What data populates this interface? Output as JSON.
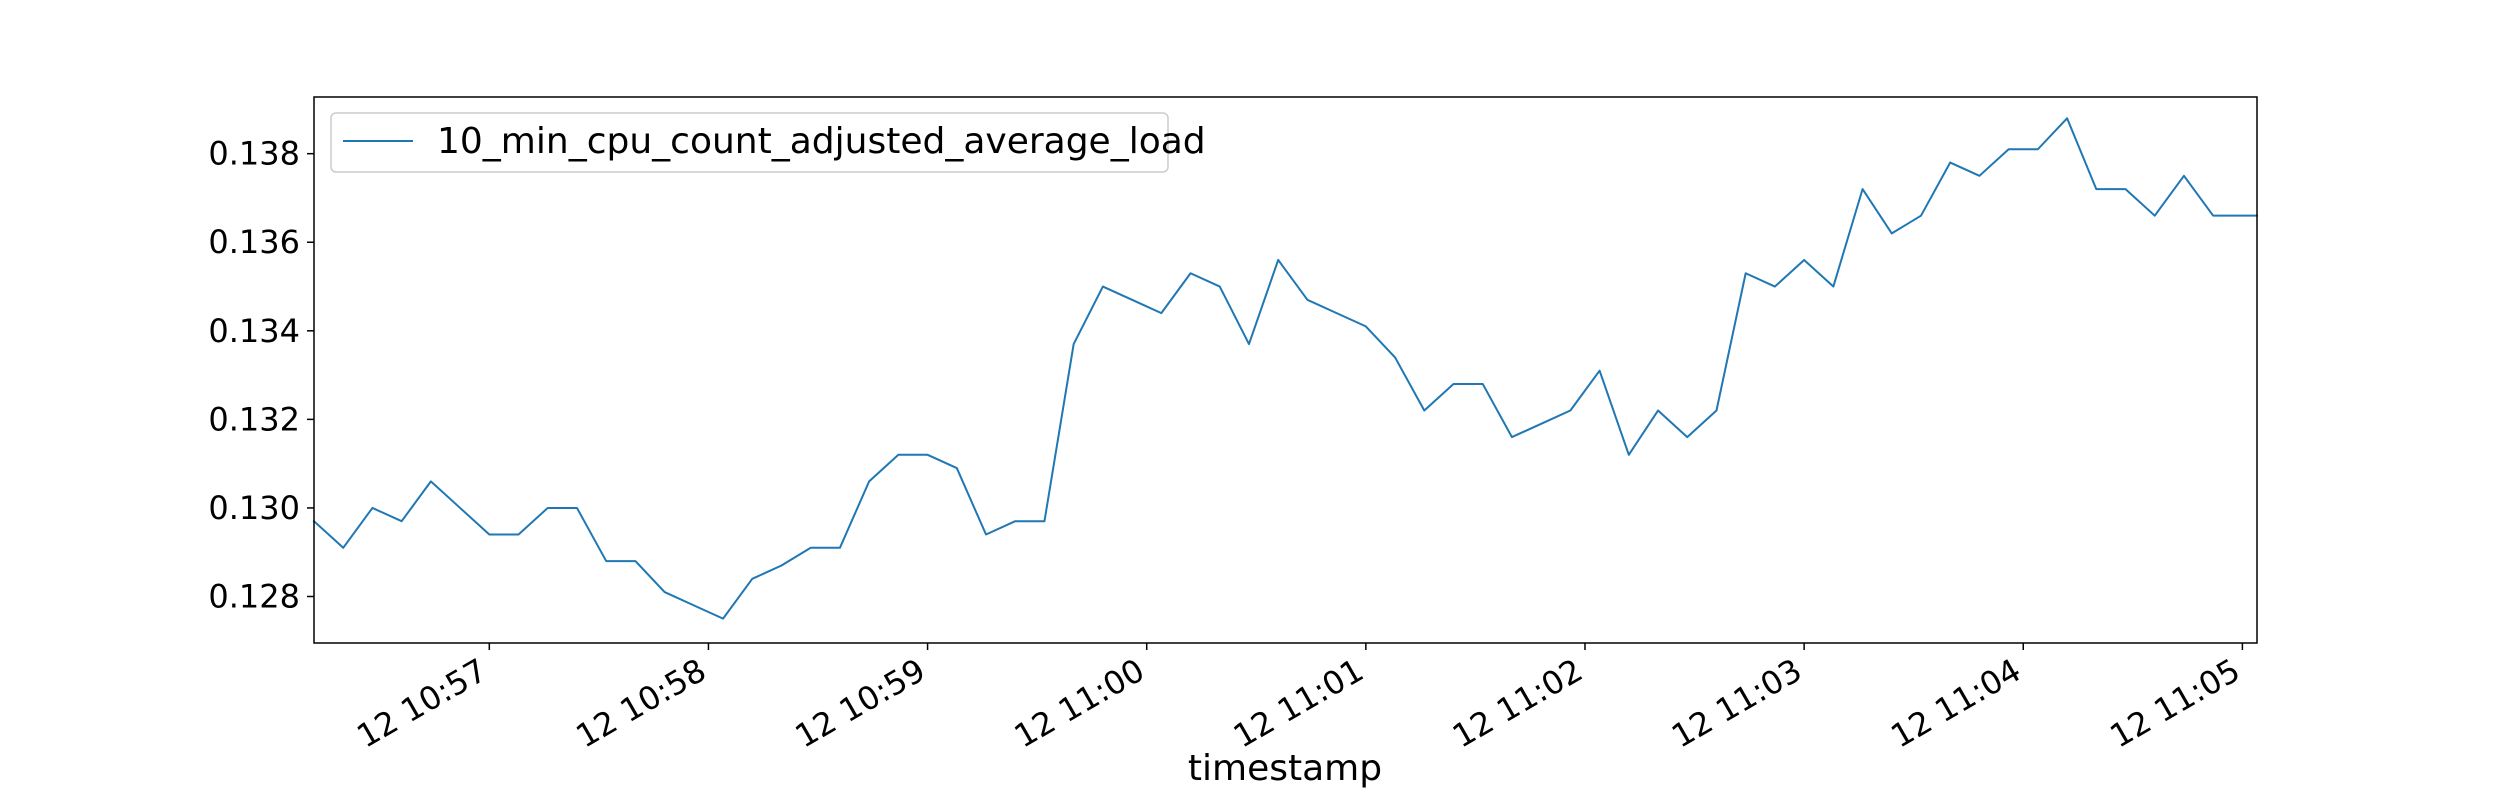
{
  "chart_data": {
    "type": "line",
    "title": "",
    "xlabel": "timestamp",
    "ylabel": "",
    "x_ticks": [
      "12 10:57",
      "12 10:58",
      "12 10:59",
      "12 11:00",
      "12 11:01",
      "12 11:02",
      "12 11:03",
      "12 11:04",
      "12 11:05"
    ],
    "y_ticks": [
      "0.128",
      "0.130",
      "0.132",
      "0.134",
      "0.136",
      "0.138"
    ],
    "ylim": [
      0.12695,
      0.13928
    ],
    "xlim": [
      "10:56:12",
      "11:05:04"
    ],
    "legend": {
      "position": "top-left"
    },
    "grid": false,
    "series": [
      {
        "name": "10_min_cpu_count_adjusted_average_load",
        "color": "#1f77b4",
        "x": [
          "10:56:12",
          "10:56:20",
          "10:56:28",
          "10:56:36",
          "10:56:44",
          "10:56:52",
          "10:57:00",
          "10:57:08",
          "10:57:16",
          "10:57:24",
          "10:57:32",
          "10:57:40",
          "10:57:48",
          "10:57:56",
          "10:58:04",
          "10:58:12",
          "10:58:20",
          "10:58:28",
          "10:58:36",
          "10:58:44",
          "10:58:52",
          "10:59:00",
          "10:59:08",
          "10:59:16",
          "10:59:24",
          "10:59:32",
          "10:59:40",
          "10:59:48",
          "10:59:56",
          "11:00:04",
          "11:00:12",
          "11:00:20",
          "11:00:28",
          "11:00:36",
          "11:00:44",
          "11:00:52",
          "11:01:00",
          "11:01:08",
          "11:01:16",
          "11:01:24",
          "11:01:32",
          "11:01:40",
          "11:01:48",
          "11:01:56",
          "11:02:04",
          "11:02:12",
          "11:02:20",
          "11:02:28",
          "11:02:36",
          "11:02:44",
          "11:02:52",
          "11:03:00",
          "11:03:08",
          "11:03:16",
          "11:03:24",
          "11:03:32",
          "11:03:40",
          "11:03:48",
          "11:03:56",
          "11:04:04",
          "11:04:12",
          "11:04:20",
          "11:04:28",
          "11:04:36",
          "11:04:44",
          "11:04:52",
          "11:05:00",
          "11:05:04"
        ],
        "y": [
          0.1297,
          0.1291,
          0.13,
          0.1297,
          0.1306,
          0.13,
          0.1294,
          0.1294,
          0.13,
          0.13,
          0.1288,
          0.1288,
          0.1281,
          0.1278,
          0.1275,
          0.1284,
          0.1287,
          0.1291,
          0.1291,
          0.1306,
          0.1312,
          0.1312,
          0.1309,
          0.1294,
          0.1297,
          0.1297,
          0.1337,
          0.135,
          0.1347,
          0.1344,
          0.1353,
          0.135,
          0.1337,
          0.1356,
          0.1347,
          0.1344,
          0.1341,
          0.1334,
          0.1322,
          0.1328,
          0.1328,
          0.1316,
          0.1319,
          0.1322,
          0.1331,
          0.1312,
          0.1322,
          0.1316,
          0.1322,
          0.1353,
          0.135,
          0.1356,
          0.135,
          0.1372,
          0.1362,
          0.1366,
          0.1378,
          0.1375,
          0.1381,
          0.1381,
          0.1388,
          0.1372,
          0.1372,
          0.1366,
          0.1375,
          0.1366,
          0.1366,
          0.1366
        ]
      }
    ]
  }
}
